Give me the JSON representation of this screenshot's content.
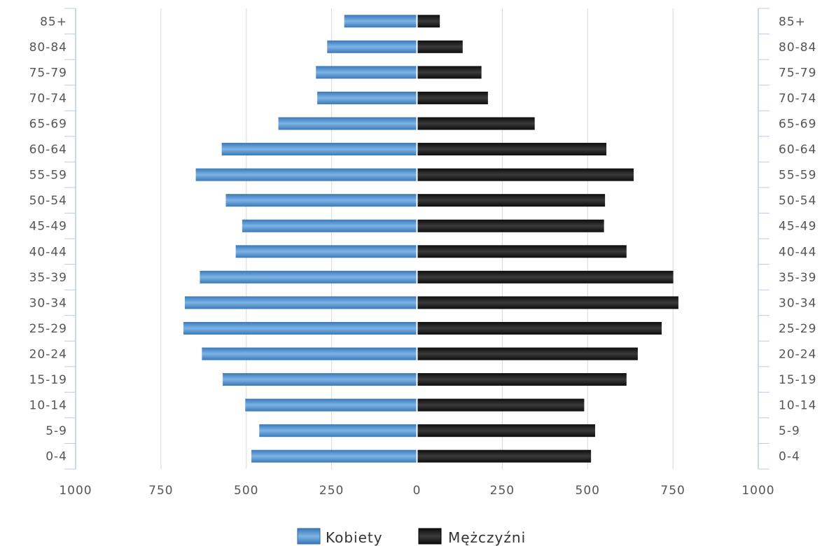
{
  "chart_data": {
    "type": "bar",
    "orientation": "horizontal",
    "style": "population-pyramid",
    "categories": [
      "85+",
      "80-84",
      "75-79",
      "70-74",
      "65-69",
      "60-64",
      "55-59",
      "50-54",
      "45-49",
      "40-44",
      "35-39",
      "30-34",
      "25-29",
      "20-24",
      "15-19",
      "10-14",
      "5-9",
      "0-4"
    ],
    "series": [
      {
        "name": "Kobiety",
        "side": "left",
        "color": "#4a8fd0",
        "values": [
          213,
          263,
          296,
          292,
          406,
          572,
          648,
          560,
          512,
          531,
          636,
          680,
          684,
          630,
          569,
          503,
          462,
          485
        ]
      },
      {
        "name": "Mężczyźni",
        "side": "right",
        "color": "#1c1c1c",
        "values": [
          67,
          134,
          189,
          208,
          345,
          555,
          635,
          551,
          548,
          614,
          751,
          766,
          717,
          647,
          614,
          490,
          522,
          510
        ]
      }
    ],
    "xlim": [
      -1000,
      1000
    ],
    "x_ticks": [
      -1000,
      -750,
      -500,
      -250,
      0,
      250,
      500,
      750,
      1000
    ],
    "x_tick_labels": [
      "1000",
      "750",
      "500",
      "250",
      "0",
      "250",
      "500",
      "750",
      "1000"
    ],
    "xlabel": "",
    "ylabel": "",
    "grid": "vertical",
    "legend": "bottom-center"
  }
}
